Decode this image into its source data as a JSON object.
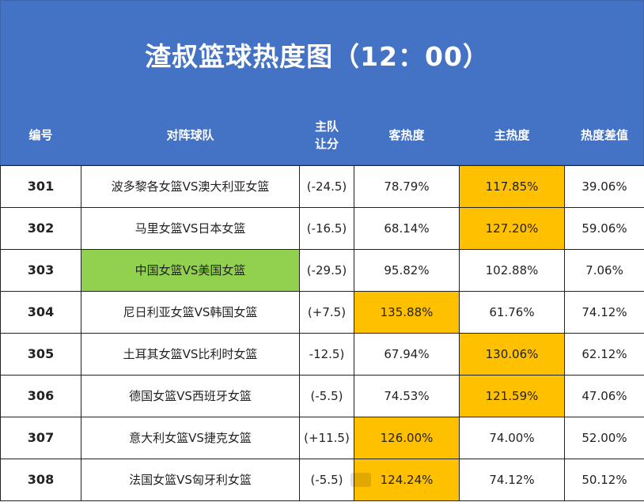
{
  "title": "渣叔篮球热度图（12：00）",
  "headers": {
    "no": "编号",
    "teams": "对阵球队",
    "handicap_line1": "主队",
    "handicap_line2": "让分",
    "away_heat": "客热度",
    "home_heat": "主热度",
    "diff": "热度差值"
  },
  "colors": {
    "header_bg": "#4472C4",
    "highlight_orange": "#FFC000",
    "highlight_green": "#92D050"
  },
  "rows": [
    {
      "no": "301",
      "teams": "波多黎各女篮VS澳大利亚女篮",
      "handicap": "(-24.5)",
      "away": "78.79%",
      "home": "117.85%",
      "diff": "39.06%",
      "hl": "home"
    },
    {
      "no": "302",
      "teams": "马里女篮VS日本女篮",
      "handicap": "(-16.5)",
      "away": "68.14%",
      "home": "127.20%",
      "diff": "59.06%",
      "hl": "home"
    },
    {
      "no": "303",
      "teams": "中国女篮VS美国女篮",
      "handicap": "(-29.5)",
      "away": "95.82%",
      "home": "102.88%",
      "diff": "7.06%",
      "hl": "teams"
    },
    {
      "no": "304",
      "teams": "尼日利亚女篮VS韩国女篮",
      "handicap": "(+7.5)",
      "away": "135.88%",
      "home": "61.76%",
      "diff": "74.12%",
      "hl": "away"
    },
    {
      "no": "305",
      "teams": "土耳其女篮VS比利时女篮",
      "handicap": "-12.5)",
      "away": "67.94%",
      "home": "130.06%",
      "diff": "62.12%",
      "hl": "home"
    },
    {
      "no": "306",
      "teams": "德国女篮VS西班牙女篮",
      "handicap": "(-5.5)",
      "away": "74.53%",
      "home": "121.59%",
      "diff": "47.06%",
      "hl": "home"
    },
    {
      "no": "307",
      "teams": "意大利女篮VS捷克女篮",
      "handicap": "(+11.5)",
      "away": "126.00%",
      "home": "74.00%",
      "diff": "52.00%",
      "hl": "away"
    },
    {
      "no": "308",
      "teams": "法国女篮VS匈牙利女篮",
      "handicap": "(-5.5)",
      "away": "124.24%",
      "home": "74.12%",
      "diff": "50.12%",
      "hl": "away"
    }
  ]
}
